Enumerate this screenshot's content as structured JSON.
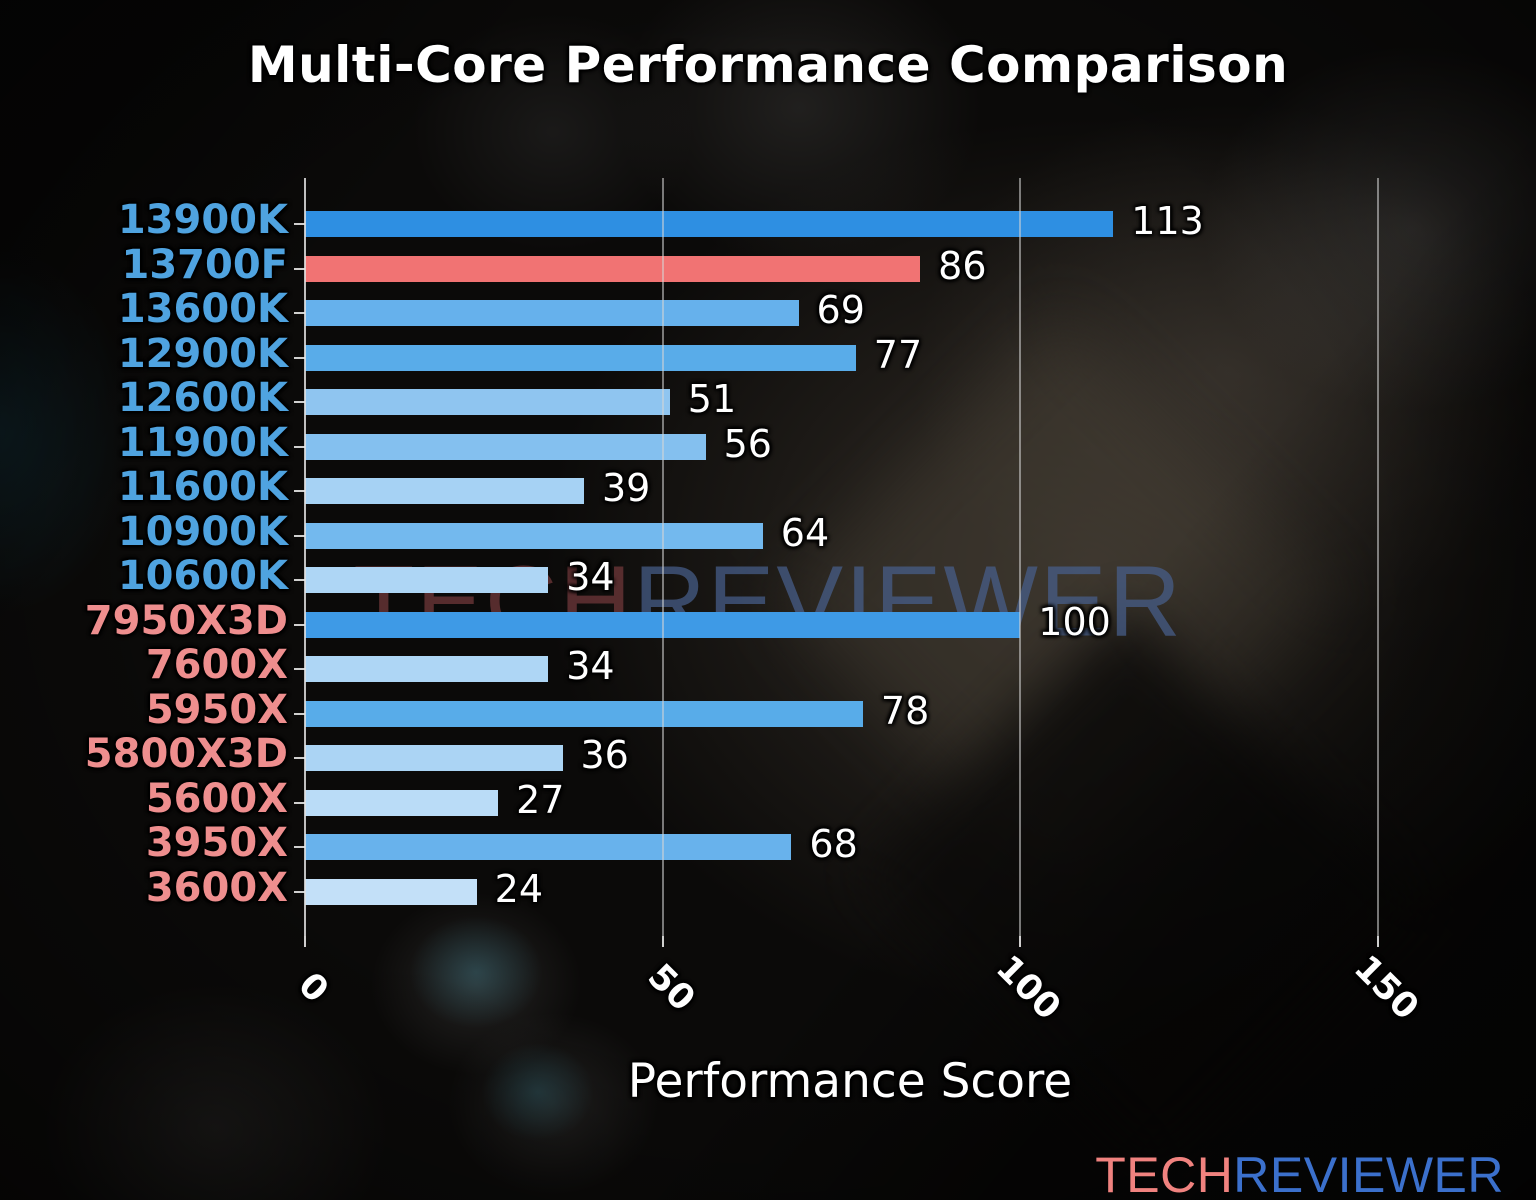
{
  "title": "Multi-Core Performance Comparison",
  "watermark": {
    "part1": "TECH",
    "part2": "REVIEWER"
  },
  "logo": {
    "part1": "TECH",
    "part2": "REVIEWER"
  },
  "chart_data": {
    "type": "bar",
    "orientation": "horizontal",
    "title": "Multi-Core Performance Comparison",
    "xlabel": "Performance Score",
    "xlim": [
      0,
      161
    ],
    "xticks": [
      "0",
      "50",
      "100",
      "150"
    ],
    "xtick_values": [
      0,
      50,
      100,
      150
    ],
    "grid": "vertical gridlines at x ticks",
    "legend": "none",
    "categories": [
      "13900K",
      "13700F",
      "13600K",
      "12900K",
      "12600K",
      "11900K",
      "11600K",
      "10900K",
      "10600K",
      "7950X3D",
      "7600X",
      "5950X",
      "5800X3D",
      "5600X",
      "3950X",
      "3600X"
    ],
    "values": [
      113,
      86,
      69,
      77,
      51,
      56,
      39,
      64,
      34,
      100,
      34,
      78,
      36,
      27,
      68,
      24
    ],
    "bar_colors": [
      "#2e8fe2",
      "#f17373",
      "#66b1ec",
      "#59ace9",
      "#8fc5f0",
      "#84c0ef",
      "#a6d2f4",
      "#73b9ee",
      "#aed6f5",
      "#3e9ae6",
      "#aed6f5",
      "#58ace9",
      "#abd4f4",
      "#badcf7",
      "#68b2ec",
      "#c3e0f8"
    ],
    "category_label_colors": [
      "#4fa3e0",
      "#4fa3e0",
      "#4fa3e0",
      "#4fa3e0",
      "#4fa3e0",
      "#4fa3e0",
      "#4fa3e0",
      "#4fa3e0",
      "#4fa3e0",
      "#ee8e8e",
      "#ee8e8e",
      "#ee8e8e",
      "#ee8e8e",
      "#ee8e8e",
      "#ee8e8e",
      "#ee8e8e"
    ],
    "highlight_category": "13700F",
    "highlight_color": "#f17373",
    "value_label_color": "#ffffff",
    "intel_label_color": "#4fa3e0",
    "amd_label_color": "#ee8e8e"
  }
}
